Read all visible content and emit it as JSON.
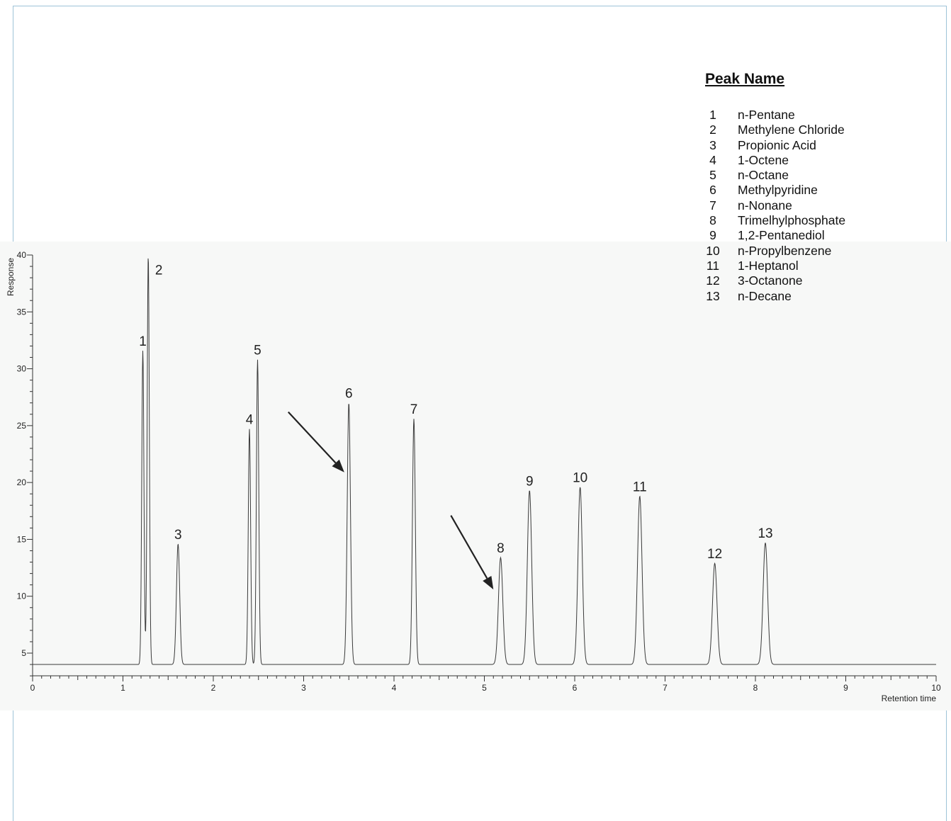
{
  "chart_data": {
    "type": "line",
    "xlabel": "Retention time",
    "ylabel": "Response",
    "xlim": [
      0,
      10
    ],
    "ylim": [
      3,
      40
    ],
    "x_ticks": [
      "0",
      "1",
      "2",
      "3",
      "4",
      "5",
      "6",
      "7",
      "8",
      "9",
      "10"
    ],
    "y_ticks": [
      "5",
      "10",
      "15",
      "20",
      "25",
      "30",
      "35",
      "40"
    ],
    "baseline": 4.0,
    "peaks": [
      {
        "label": "1",
        "x": 1.22,
        "y": 31.6,
        "width": 0.012
      },
      {
        "label": "2",
        "x": 1.28,
        "y": 40,
        "width": 0.012
      },
      {
        "label": "3",
        "x": 1.61,
        "y": 14.6,
        "width": 0.018
      },
      {
        "label": "4",
        "x": 2.4,
        "y": 24.7,
        "width": 0.013
      },
      {
        "label": "5",
        "x": 2.49,
        "y": 30.8,
        "width": 0.013
      },
      {
        "label": "6",
        "x": 3.5,
        "y": 27.0,
        "width": 0.018
      },
      {
        "label": "7",
        "x": 4.22,
        "y": 25.6,
        "width": 0.016
      },
      {
        "label": "8",
        "x": 5.18,
        "y": 13.4,
        "width": 0.024
      },
      {
        "label": "9",
        "x": 5.5,
        "y": 19.3,
        "width": 0.024
      },
      {
        "label": "10",
        "x": 6.06,
        "y": 19.6,
        "width": 0.024
      },
      {
        "label": "11",
        "x": 6.72,
        "y": 18.8,
        "width": 0.025
      },
      {
        "label": "12",
        "x": 7.55,
        "y": 12.9,
        "width": 0.025
      },
      {
        "label": "13",
        "x": 8.11,
        "y": 14.7,
        "width": 0.025
      }
    ],
    "annotations": [
      {
        "type": "arrow",
        "from": [
          2.83,
          26.2
        ],
        "to": [
          3.45,
          20.9
        ]
      },
      {
        "type": "arrow",
        "from": [
          4.63,
          17.1
        ],
        "to": [
          5.1,
          10.6
        ]
      }
    ],
    "legend": {
      "title": "Peak Name",
      "entries": [
        {
          "num": "1",
          "name": "n-Pentane"
        },
        {
          "num": "2",
          "name": "Methylene Chloride"
        },
        {
          "num": "3",
          "name": "Propionic Acid"
        },
        {
          "num": "4",
          "name": "1-Octene"
        },
        {
          "num": "5",
          "name": "n-Octane"
        },
        {
          "num": "6",
          "name": "Methylpyridine"
        },
        {
          "num": "7",
          "name": "n-Nonane"
        },
        {
          "num": "8",
          "name": "Trimelhylphosphate"
        },
        {
          "num": "9",
          "name": "1,2-Pentanediol"
        },
        {
          "num": "10",
          "name": "n-Propylbenzene"
        },
        {
          "num": "11",
          "name": "1-Heptanol"
        },
        {
          "num": "12",
          "name": "3-Octanone"
        },
        {
          "num": "13",
          "name": "n-Decane"
        }
      ]
    },
    "grid": false
  }
}
